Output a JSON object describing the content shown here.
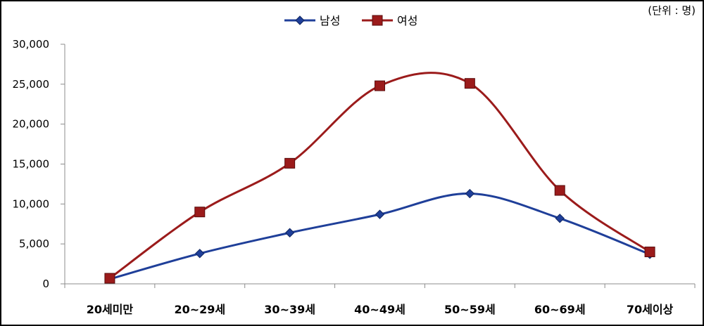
{
  "chart_data": {
    "type": "line",
    "unit_note": "(단위 : 명)",
    "categories": [
      "20세미만",
      "20~29세",
      "30~39세",
      "40~49세",
      "50~59세",
      "60~69세",
      "70세이상"
    ],
    "y_ticks": [
      "0",
      "5,000",
      "10,000",
      "15,000",
      "20,000",
      "25,000",
      "30,000"
    ],
    "ylim": [
      0,
      30000
    ],
    "grid": false,
    "legend_position": "top-center",
    "smooth": true,
    "series": [
      {
        "name": "남성",
        "color": "#1f3f99",
        "marker": "diamond",
        "values": [
          600,
          3800,
          6400,
          8700,
          11300,
          8200,
          3700
        ]
      },
      {
        "name": "여성",
        "color": "#9b1b1b",
        "marker": "square",
        "values": [
          700,
          9000,
          15100,
          24800,
          25100,
          11700,
          4000
        ]
      }
    ]
  }
}
